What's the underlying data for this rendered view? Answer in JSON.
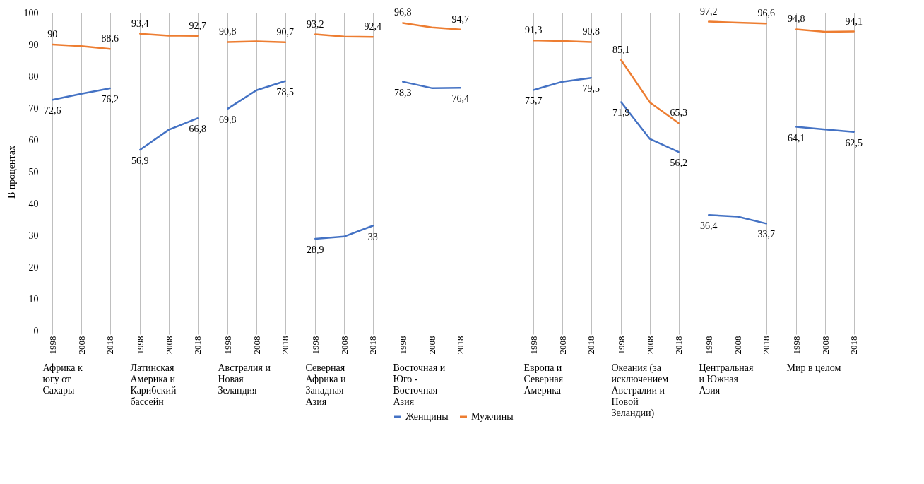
{
  "chart_data": [
    {
      "type": "line",
      "xlabel": "Африка к югу от Сахары",
      "ylabel": "В процентах",
      "categories": [
        "1998",
        "2008",
        "2018"
      ],
      "ylim": [
        0,
        100
      ],
      "yticks": [
        0,
        10,
        20,
        30,
        40,
        50,
        60,
        70,
        80,
        90,
        100
      ],
      "grid": "x",
      "legend": false,
      "series": [
        {
          "color": "#4472c4",
          "values": [
            72.6,
            74.5,
            76.2
          ],
          "value_labels": [
            "72,6",
            null,
            "76,2"
          ]
        },
        {
          "color": "#ed7d31",
          "values": [
            90,
            89.5,
            88.6
          ],
          "value_labels": [
            "90",
            null,
            "88,6"
          ]
        }
      ]
    },
    {
      "type": "line",
      "xlabel": "Латинская Америка и Карибский бассейн",
      "categories": [
        "1998",
        "2008",
        "2018"
      ],
      "ylim": [
        0,
        100
      ],
      "tick_labels": "x",
      "grid": "x",
      "legend": false,
      "series": [
        {
          "color": "#4472c4",
          "values": [
            56.9,
            63.2,
            66.8
          ],
          "value_labels": [
            "56,9",
            null,
            "66,8"
          ]
        },
        {
          "color": "#ed7d31",
          "values": [
            93.4,
            92.8,
            92.7
          ],
          "value_labels": [
            "93,4",
            null,
            "92,7"
          ]
        }
      ]
    },
    {
      "type": "line",
      "xlabel": "Австралия и Новая Зеландия",
      "categories": [
        "1998",
        "2008",
        "2018"
      ],
      "ylim": [
        0,
        100
      ],
      "tick_labels": "x",
      "grid": "x",
      "legend": false,
      "series": [
        {
          "color": "#4472c4",
          "values": [
            69.8,
            75.6,
            78.5
          ],
          "value_labels": [
            "69,8",
            null,
            "78,5"
          ]
        },
        {
          "color": "#ed7d31",
          "values": [
            90.8,
            91.0,
            90.7
          ],
          "value_labels": [
            "90,8",
            null,
            "90,7"
          ]
        }
      ]
    },
    {
      "type": "line",
      "xlabel": "Северная Африка и Западная Азия",
      "categories": [
        "1998",
        "2008",
        "2018"
      ],
      "ylim": [
        0,
        100
      ],
      "tick_labels": "x",
      "grid": "x",
      "legend": false,
      "series": [
        {
          "color": "#4472c4",
          "values": [
            28.9,
            29.6,
            33
          ],
          "value_labels": [
            "28,9",
            null,
            "33"
          ]
        },
        {
          "color": "#ed7d31",
          "values": [
            93.2,
            92.5,
            92.4
          ],
          "value_labels": [
            "93,2",
            null,
            "92,4"
          ]
        }
      ]
    },
    {
      "type": "line",
      "xlabel": "Восточная и Юго - Восточная Азия",
      "categories": [
        "1998",
        "2008",
        "2018"
      ],
      "ylim": [
        0,
        100
      ],
      "tick_labels": "x",
      "grid": "x",
      "legend": "bottom",
      "series": [
        {
          "name": "Женщины",
          "color": "#4472c4",
          "values": [
            78.3,
            76.3,
            76.4
          ],
          "value_labels": [
            "78,3",
            null,
            "76,4"
          ]
        },
        {
          "name": "Мужчины",
          "color": "#ed7d31",
          "values": [
            96.8,
            95.4,
            94.7
          ],
          "value_labels": [
            "96,8",
            null,
            "94,7"
          ]
        }
      ]
    },
    {
      "type": "line",
      "xlabel": "Европа и Северная Америка",
      "categories": [
        "1998",
        "2008",
        "2018"
      ],
      "ylim": [
        0,
        100
      ],
      "tick_labels": "x",
      "grid": "x",
      "legend": false,
      "series": [
        {
          "color": "#4472c4",
          "values": [
            75.7,
            78.3,
            79.5
          ],
          "value_labels": [
            "75,7",
            null,
            "79,5"
          ]
        },
        {
          "color": "#ed7d31",
          "values": [
            91.3,
            91.1,
            90.8
          ],
          "value_labels": [
            "91,3",
            null,
            "90,8"
          ]
        }
      ]
    },
    {
      "type": "line",
      "xlabel": "Океания (за исключением Австралии и Новой Зеландии)",
      "categories": [
        "1998",
        "2008",
        "2018"
      ],
      "ylim": [
        0,
        100
      ],
      "tick_labels": "x",
      "grid": "x",
      "legend": false,
      "series": [
        {
          "color": "#4472c4",
          "values": [
            71.9,
            60.3,
            56.2
          ],
          "value_labels": [
            "71,9",
            null,
            "56,2"
          ]
        },
        {
          "color": "#ed7d31",
          "values": [
            85.1,
            71.8,
            65.3
          ],
          "value_labels": [
            "85,1",
            null,
            "65,3"
          ]
        }
      ]
    },
    {
      "type": "line",
      "xlabel": "Центральная и Южная Азия",
      "categories": [
        "1998",
        "2008",
        "2018"
      ],
      "ylim": [
        0,
        100
      ],
      "tick_labels": "x",
      "grid": "x",
      "legend": false,
      "series": [
        {
          "color": "#4472c4",
          "values": [
            36.4,
            35.9,
            33.7
          ],
          "value_labels": [
            "36,4",
            null,
            "33,7"
          ]
        },
        {
          "color": "#ed7d31",
          "values": [
            97.2,
            96.9,
            96.6
          ],
          "value_labels": [
            "97,2",
            null,
            "96,6"
          ]
        }
      ]
    },
    {
      "type": "line",
      "xlabel": "Мир в целом",
      "categories": [
        "1998",
        "2008",
        "2018"
      ],
      "ylim": [
        0,
        100
      ],
      "tick_labels": "x",
      "grid": "x",
      "legend": false,
      "series": [
        {
          "color": "#4472c4",
          "values": [
            64.1,
            63.3,
            62.5
          ],
          "value_labels": [
            "64,1",
            null,
            "62,5"
          ]
        },
        {
          "color": "#ed7d31",
          "values": [
            94.8,
            94.0,
            94.1
          ],
          "value_labels": [
            "94,8",
            null,
            "94,1"
          ]
        }
      ]
    }
  ]
}
